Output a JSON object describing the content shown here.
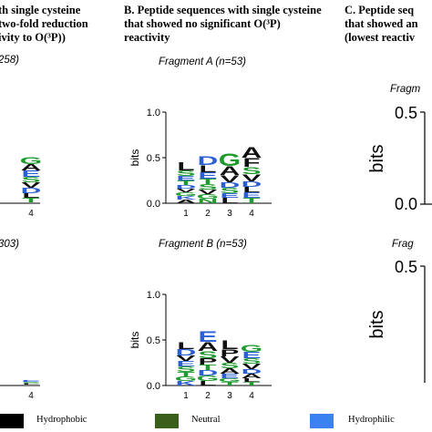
{
  "headers": {
    "a": {
      "lines": [
        "th single cysteine",
        "two-fold reduction",
        "ivity to O(³P))"
      ]
    },
    "b": {
      "lines": [
        "B. Peptide sequences with single cysteine",
        "that showed no significant O(³P)",
        "reactivity"
      ]
    },
    "c": {
      "lines": [
        "C. Peptide seq",
        "that showed an",
        "(lowest reactiv"
      ]
    }
  },
  "fragments": {
    "a_top": "258)",
    "a_bottom": "303)",
    "b_top": "Fragment A (n=53)",
    "b_bottom": "Fragment B (n=53)",
    "c_top": "Fragm",
    "c_bottom": "Frag"
  },
  "legend": {
    "items": [
      {
        "label": "Hydrophobic",
        "color": "#000000"
      },
      {
        "label": "Neutral",
        "color": "#3a5f1a"
      },
      {
        "label": "Hydrophilic",
        "color": "#3b82f0"
      }
    ]
  },
  "colors": {
    "hydrophobic": "#111111",
    "neutral": "#1f9a2e",
    "hydrophilic": "#2b5fd6",
    "neutral_legend": "#3a5f1a",
    "hydrophilic_legend": "#3b82f0"
  },
  "chart_data": [
    {
      "type": "sequence-logo",
      "panel": "B",
      "fragment": "Fragment A (n=53)",
      "ylabel": "bits",
      "ylim": [
        0,
        1.0
      ],
      "yticks": [
        "0.0",
        "0.5",
        "1.0"
      ],
      "positions": [
        "1",
        "2",
        "3",
        "4"
      ],
      "columns": [
        {
          "position": "1",
          "total_bits": 0.45,
          "letters": [
            {
              "char": "L",
              "bits": 0.09,
              "class": "hydrophobic"
            },
            {
              "char": "S",
              "bits": 0.06,
              "class": "neutral"
            },
            {
              "char": "E",
              "bits": 0.05,
              "class": "hydrophilic"
            },
            {
              "char": "T",
              "bits": 0.05,
              "class": "neutral"
            },
            {
              "char": "D",
              "bits": 0.04,
              "class": "hydrophilic"
            },
            {
              "char": "V",
              "bits": 0.04,
              "class": "hydrophobic"
            },
            {
              "char": "G",
              "bits": 0.04,
              "class": "neutral"
            },
            {
              "char": "K",
              "bits": 0.04,
              "class": "hydrophilic"
            },
            {
              "char": "A",
              "bits": 0.04,
              "class": "hydrophobic"
            }
          ]
        },
        {
          "position": "2",
          "total_bits": 0.52,
          "letters": [
            {
              "char": "D",
              "bits": 0.1,
              "class": "hydrophilic"
            },
            {
              "char": "L",
              "bits": 0.08,
              "class": "hydrophobic"
            },
            {
              "char": "E",
              "bits": 0.07,
              "class": "hydrophilic"
            },
            {
              "char": "T",
              "bits": 0.06,
              "class": "neutral"
            },
            {
              "char": "S",
              "bits": 0.06,
              "class": "neutral"
            },
            {
              "char": "V",
              "bits": 0.05,
              "class": "hydrophobic"
            },
            {
              "char": "G",
              "bits": 0.05,
              "class": "neutral"
            },
            {
              "char": "N",
              "bits": 0.05,
              "class": "neutral"
            }
          ]
        },
        {
          "position": "3",
          "total_bits": 0.55,
          "letters": [
            {
              "char": "G",
              "bits": 0.14,
              "class": "neutral"
            },
            {
              "char": "A",
              "bits": 0.1,
              "class": "hydrophobic"
            },
            {
              "char": "V",
              "bits": 0.08,
              "class": "hydrophobic"
            },
            {
              "char": "D",
              "bits": 0.06,
              "class": "hydrophilic"
            },
            {
              "char": "S",
              "bits": 0.06,
              "class": "neutral"
            },
            {
              "char": "E",
              "bits": 0.05,
              "class": "hydrophilic"
            },
            {
              "char": "L",
              "bits": 0.06,
              "class": "hydrophobic"
            }
          ]
        },
        {
          "position": "4",
          "total_bits": 0.62,
          "letters": [
            {
              "char": "A",
              "bits": 0.12,
              "class": "hydrophobic"
            },
            {
              "char": "F",
              "bits": 0.1,
              "class": "hydrophobic"
            },
            {
              "char": "S",
              "bits": 0.08,
              "class": "neutral"
            },
            {
              "char": "V",
              "bits": 0.08,
              "class": "hydrophobic"
            },
            {
              "char": "D",
              "bits": 0.06,
              "class": "hydrophilic"
            },
            {
              "char": "L",
              "bits": 0.06,
              "class": "hydrophobic"
            },
            {
              "char": "E",
              "bits": 0.06,
              "class": "hydrophilic"
            },
            {
              "char": "T",
              "bits": 0.06,
              "class": "neutral"
            }
          ]
        }
      ]
    },
    {
      "type": "sequence-logo",
      "panel": "B",
      "fragment": "Fragment B (n=53)",
      "ylabel": "bits",
      "ylim": [
        0,
        1.0
      ],
      "yticks": [
        "0.0",
        "0.5",
        "1.0"
      ],
      "positions": [
        "1",
        "2",
        "3",
        "4"
      ],
      "columns": [
        {
          "position": "1",
          "total_bits": 0.48,
          "letters": [
            {
              "char": "L",
              "bits": 0.08,
              "class": "hydrophobic"
            },
            {
              "char": "D",
              "bits": 0.07,
              "class": "hydrophilic"
            },
            {
              "char": "V",
              "bits": 0.06,
              "class": "hydrophobic"
            },
            {
              "char": "E",
              "bits": 0.06,
              "class": "hydrophilic"
            },
            {
              "char": "S",
              "bits": 0.06,
              "class": "neutral"
            },
            {
              "char": "T",
              "bits": 0.05,
              "class": "neutral"
            },
            {
              "char": "G",
              "bits": 0.05,
              "class": "neutral"
            },
            {
              "char": "K",
              "bits": 0.05,
              "class": "hydrophilic"
            }
          ]
        },
        {
          "position": "2",
          "total_bits": 0.6,
          "letters": [
            {
              "char": "E",
              "bits": 0.12,
              "class": "hydrophilic"
            },
            {
              "char": "A",
              "bits": 0.1,
              "class": "hydrophobic"
            },
            {
              "char": "S",
              "bits": 0.08,
              "class": "neutral"
            },
            {
              "char": "P",
              "bits": 0.07,
              "class": "hydrophobic"
            },
            {
              "char": "T",
              "bits": 0.06,
              "class": "neutral"
            },
            {
              "char": "D",
              "bits": 0.06,
              "class": "hydrophilic"
            },
            {
              "char": "G",
              "bits": 0.06,
              "class": "neutral"
            },
            {
              "char": "L",
              "bits": 0.05,
              "class": "hydrophobic"
            }
          ]
        },
        {
          "position": "3",
          "total_bits": 0.5,
          "letters": [
            {
              "char": "L",
              "bits": 0.1,
              "class": "hydrophobic"
            },
            {
              "char": "P",
              "bits": 0.08,
              "class": "hydrophobic"
            },
            {
              "char": "V",
              "bits": 0.07,
              "class": "hydrophobic"
            },
            {
              "char": "S",
              "bits": 0.06,
              "class": "neutral"
            },
            {
              "char": "A",
              "bits": 0.06,
              "class": "hydrophobic"
            },
            {
              "char": "E",
              "bits": 0.05,
              "class": "hydrophilic"
            },
            {
              "char": "G",
              "bits": 0.04,
              "class": "neutral"
            },
            {
              "char": "T",
              "bits": 0.04,
              "class": "neutral"
            }
          ]
        },
        {
          "position": "4",
          "total_bits": 0.45,
          "letters": [
            {
              "char": "G",
              "bits": 0.08,
              "class": "neutral"
            },
            {
              "char": "E",
              "bits": 0.07,
              "class": "hydrophilic"
            },
            {
              "char": "S",
              "bits": 0.06,
              "class": "neutral"
            },
            {
              "char": "V",
              "bits": 0.06,
              "class": "hydrophobic"
            },
            {
              "char": "D",
              "bits": 0.05,
              "class": "hydrophilic"
            },
            {
              "char": "A",
              "bits": 0.05,
              "class": "hydrophobic"
            },
            {
              "char": "L",
              "bits": 0.04,
              "class": "hydrophobic"
            },
            {
              "char": "T",
              "bits": 0.04,
              "class": "neutral"
            }
          ]
        }
      ]
    },
    {
      "type": "sequence-logo",
      "panel": "A",
      "fragment": "258)",
      "positions": [
        "4"
      ],
      "columns": [
        {
          "position": "4",
          "total_bits": 0.5,
          "letters": [
            {
              "char": "G",
              "bits": 0.08,
              "class": "neutral"
            },
            {
              "char": "A",
              "bits": 0.07,
              "class": "hydrophobic"
            },
            {
              "char": "E",
              "bits": 0.07,
              "class": "hydrophilic"
            },
            {
              "char": "S",
              "bits": 0.06,
              "class": "neutral"
            },
            {
              "char": "V",
              "bits": 0.06,
              "class": "hydrophobic"
            },
            {
              "char": "D",
              "bits": 0.06,
              "class": "hydrophilic"
            },
            {
              "char": "L",
              "bits": 0.05,
              "class": "hydrophobic"
            },
            {
              "char": "T",
              "bits": 0.05,
              "class": "neutral"
            }
          ]
        }
      ]
    },
    {
      "type": "sequence-logo",
      "panel": "A",
      "fragment": "303)",
      "positions": [
        "4"
      ],
      "columns": [
        {
          "position": "4",
          "total_bits": 0.05,
          "letters": [
            {
              "char": "E",
              "bits": 0.02,
              "class": "hydrophilic"
            },
            {
              "char": "S",
              "bits": 0.015,
              "class": "neutral"
            },
            {
              "char": "L",
              "bits": 0.015,
              "class": "hydrophobic"
            }
          ]
        }
      ]
    },
    {
      "type": "sequence-logo",
      "panel": "C",
      "fragment": "Fragm",
      "ylabel": "bits",
      "ylim": [
        0,
        0.5
      ],
      "yticks": [
        "0.0",
        "0.5"
      ],
      "columns": []
    },
    {
      "type": "sequence-logo",
      "panel": "C",
      "fragment": "Frag",
      "ylabel": "bits",
      "ylim": [
        0,
        0.5
      ],
      "yticks": [
        "0.0",
        "0.5"
      ],
      "columns": []
    }
  ]
}
